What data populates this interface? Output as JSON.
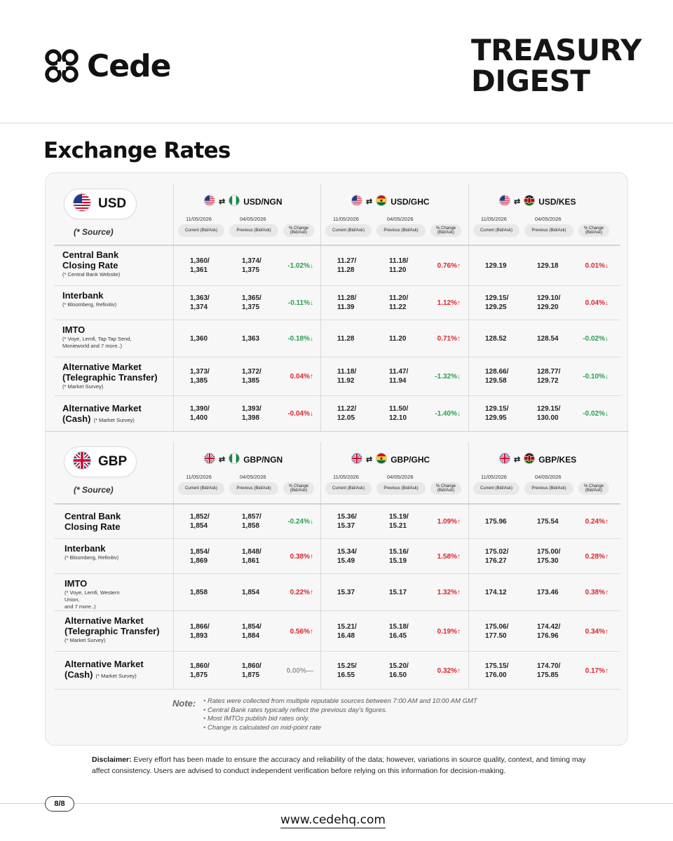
{
  "brand": {
    "logo_text": "Cede",
    "header_title_line1": "TREASURY",
    "header_title_line2": "DIGEST"
  },
  "section_title": "Exchange Rates",
  "source_label": "(* Source)",
  "colors": {
    "down": "#27a050",
    "up": "#e0232d",
    "flat": "#999999"
  },
  "col_headers": {
    "current": "Current (Bid/Ask)",
    "previous": "Previous (Bid/Ask)",
    "change": "% Change (Bid/Ask)"
  },
  "blocks": [
    {
      "currency": "USD",
      "flag": "us",
      "pairs": [
        {
          "name": "USD/NGN",
          "to_flag": "ng",
          "current_date": "11/05/2026",
          "previous_date": "04/05/2026"
        },
        {
          "name": "USD/GHC",
          "to_flag": "gh",
          "current_date": "11/05/2026",
          "previous_date": "04/05/2026"
        },
        {
          "name": "USD/KES",
          "to_flag": "ke",
          "current_date": "11/05/2026",
          "previous_date": "04/05/2026"
        }
      ],
      "rows": [
        {
          "label": "Central Bank Closing Rate",
          "sub": "(* Central Bank Website)",
          "values": [
            {
              "cur": "1,360/\n1,361",
              "prev": "1,374/\n1,375",
              "chg": "-1.02%",
              "dir": "down"
            },
            {
              "cur": "11.27/\n11.28",
              "prev": "11.18/\n11.20",
              "chg": "0.76%",
              "dir": "up"
            },
            {
              "cur": "129.19",
              "prev": "129.18",
              "chg": "0.01%",
              "dir": "up-down"
            }
          ]
        },
        {
          "label": "Interbank",
          "sub": "(* Bloomberg, Refinitiv)",
          "values": [
            {
              "cur": "1,363/\n1,374",
              "prev": "1,365/\n1,375",
              "chg": "-0.11%",
              "dir": "down"
            },
            {
              "cur": "11.28/\n11.39",
              "prev": "11.20/\n11.22",
              "chg": "1.12%",
              "dir": "up"
            },
            {
              "cur": "129.15/\n129.25",
              "prev": "129.10/\n129.20",
              "chg": "0.04%",
              "dir": "up-down"
            }
          ]
        },
        {
          "label": "IMTO",
          "sub": "(* Voye, Lemfi, Tap Tap Send,\nMonieworld and 7 more..)",
          "values": [
            {
              "cur": "1,360",
              "prev": "1,363",
              "chg": "-0.18%",
              "dir": "down"
            },
            {
              "cur": "11.28",
              "prev": "11.20",
              "chg": "0.71%",
              "dir": "up"
            },
            {
              "cur": "128.52",
              "prev": "128.54",
              "chg": "-0.02%",
              "dir": "down"
            }
          ]
        },
        {
          "label": "Alternative Market (Telegraphic Transfer)",
          "sub": "(* Market Survey)",
          "values": [
            {
              "cur": "1,373/\n1,385",
              "prev": "1,372/\n1,385",
              "chg": "0.04%",
              "dir": "up"
            },
            {
              "cur": "11.18/\n11.92",
              "prev": "11.47/\n11.94",
              "chg": "-1.32%",
              "dir": "down"
            },
            {
              "cur": "128.66/\n129.58",
              "prev": "128.77/\n129.72",
              "chg": "-0.10%",
              "dir": "down"
            }
          ]
        },
        {
          "label": "Alternative Market (Cash)",
          "sub": "(* Market Survey)",
          "values": [
            {
              "cur": "1,390/\n1,400",
              "prev": "1,393/\n1,398",
              "chg": "-0.04%",
              "dir": "up-down"
            },
            {
              "cur": "11.22/\n12.05",
              "prev": "11.50/\n12.10",
              "chg": "-1.40%",
              "dir": "down"
            },
            {
              "cur": "129.15/\n129.95",
              "prev": "129.15/\n130.00",
              "chg": "-0.02%",
              "dir": "down"
            }
          ]
        }
      ]
    },
    {
      "currency": "GBP",
      "flag": "gb",
      "pairs": [
        {
          "name": "GBP/NGN",
          "to_flag": "ng",
          "current_date": "11/05/2026",
          "previous_date": "04/05/2026"
        },
        {
          "name": "GBP/GHC",
          "to_flag": "gh",
          "current_date": "11/05/2026",
          "previous_date": "04/05/2026"
        },
        {
          "name": "GBP/KES",
          "to_flag": "ke",
          "current_date": "11/05/2026",
          "previous_date": "04/05/2026"
        }
      ],
      "rows": [
        {
          "label": "Central Bank Closing Rate",
          "sub": "",
          "values": [
            {
              "cur": "1,852/\n1,854",
              "prev": "1,857/\n1,858",
              "chg": "-0.24%",
              "dir": "down"
            },
            {
              "cur": "15.36/\n15.37",
              "prev": "15.19/\n15.21",
              "chg": "1.09%",
              "dir": "up"
            },
            {
              "cur": "175.96",
              "prev": "175.54",
              "chg": "0.24%",
              "dir": "up"
            }
          ]
        },
        {
          "label": "Interbank",
          "sub": "(* Bloomberg, Refinitiv)",
          "values": [
            {
              "cur": "1,854/\n1,869",
              "prev": "1,848/\n1,861",
              "chg": "0.38%",
              "dir": "up"
            },
            {
              "cur": "15.34/\n15.49",
              "prev": "15.16/\n15.19",
              "chg": "1.58%",
              "dir": "up"
            },
            {
              "cur": "175.02/\n176.27",
              "prev": "175.00/\n175.30",
              "chg": "0.28%",
              "dir": "up"
            }
          ]
        },
        {
          "label": "IMTO",
          "sub": "(* Voye, Lemfi, Western Union,\nand 7 more..)",
          "values": [
            {
              "cur": "1,858",
              "prev": "1,854",
              "chg": "0.22%",
              "dir": "up"
            },
            {
              "cur": "15.37",
              "prev": "15.17",
              "chg": "1.32%",
              "dir": "up"
            },
            {
              "cur": "174.12",
              "prev": "173.46",
              "chg": "0.38%",
              "dir": "up"
            }
          ]
        },
        {
          "label": "Alternative Market (Telegraphic Transfer)",
          "sub": "(* Market Survey)",
          "values": [
            {
              "cur": "1,866/\n1,893",
              "prev": "1,854/\n1,884",
              "chg": "0.56%",
              "dir": "up"
            },
            {
              "cur": "15.21/\n16.48",
              "prev": "15.18/\n16.45",
              "chg": "0.19%",
              "dir": "up"
            },
            {
              "cur": "175.06/\n177.50",
              "prev": "174.42/\n176.96",
              "chg": "0.34%",
              "dir": "up"
            }
          ]
        },
        {
          "label": "Alternative Market (Cash)",
          "sub": "(* Market Survey)",
          "values": [
            {
              "cur": "1,860/\n1,875",
              "prev": "1,860/\n1,875",
              "chg": "0.00%",
              "dir": "flat"
            },
            {
              "cur": "15.25/\n16.55",
              "prev": "15.20/\n16.50",
              "chg": "0.32%",
              "dir": "up"
            },
            {
              "cur": "175.15/\n176.00",
              "prev": "174.70/\n175.85",
              "chg": "0.17%",
              "dir": "up"
            }
          ]
        }
      ]
    }
  ],
  "note_label": "Note:",
  "notes": [
    "Rates were collected from multiple reputable sources between 7:00 AM and 10:00 AM GMT",
    "Central Bank rates typically reflect the previous day's figures.",
    "Most IMTOs publish bid rates only.",
    "Change is calculated on mid-point rate"
  ],
  "disclaimer_label": "Disclaimer:",
  "disclaimer_text": "Every effort has been made to ensure the accuracy and reliability of the data; however, variations in source quality, context, and timing may affect consistency. Users are advised to conduct independent verification before relying on this information for decision-making.",
  "page_number": "8/8",
  "website": "www.cedehq.com"
}
